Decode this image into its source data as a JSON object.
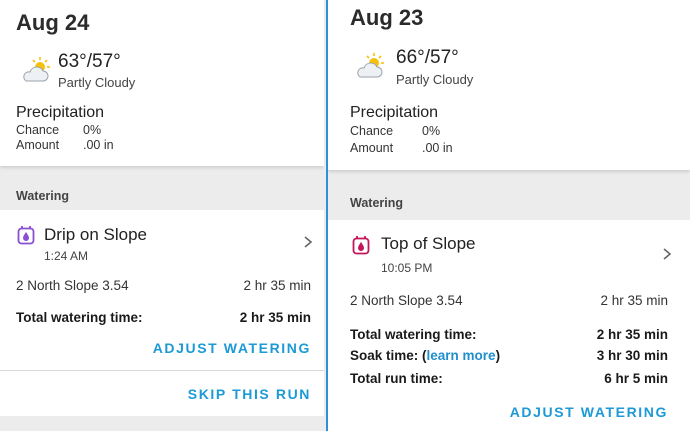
{
  "left": {
    "date": "Aug 24",
    "weather": {
      "icon": "partly-cloudy-icon",
      "temp": "63°/57°",
      "condition": "Partly Cloudy"
    },
    "precipitation": {
      "title": "Precipitation",
      "chance_label": "Chance",
      "chance_value": "0%",
      "amount_label": "Amount",
      "amount_value": ".00 in"
    },
    "watering_header": "Watering",
    "zone": {
      "icon": "drip-timer-icon",
      "icon_color": "#8a4fd3",
      "name": "Drip on Slope",
      "time": "1:24 AM"
    },
    "schedule": {
      "label": "2 North Slope 3.54",
      "value": "2 hr 35 min"
    },
    "total": {
      "label": "Total watering time:",
      "value": "2 hr 35 min"
    },
    "adjust_label": "ADJUST WATERING",
    "skip_label": "SKIP THIS RUN"
  },
  "right": {
    "date": "Aug 23",
    "weather": {
      "icon": "partly-cloudy-icon",
      "temp": "66°/57°",
      "condition": "Partly Cloudy"
    },
    "precipitation": {
      "title": "Precipitation",
      "chance_label": "Chance",
      "chance_value": "0%",
      "amount_label": "Amount",
      "amount_value": ".00 in"
    },
    "watering_header": "Watering",
    "zone": {
      "icon": "drip-timer-icon",
      "icon_color": "#c2185b",
      "name": "Top of Slope",
      "time": "10:05 PM"
    },
    "schedule": {
      "label": "2 North Slope 3.54",
      "value": "2 hr 35 min"
    },
    "total": {
      "label": "Total watering time:",
      "value": "2 hr 35 min"
    },
    "soak": {
      "label_prefix": "Soak time: (",
      "link": "learn more",
      "label_suffix": ")",
      "value": "3 hr 30 min"
    },
    "run": {
      "label": "Total run time:",
      "value": "6 hr 5 min"
    },
    "adjust_label": "ADJUST WATERING"
  },
  "colors": {
    "accent": "#1d9ad6",
    "divider_accent": "#2f8fd8"
  }
}
